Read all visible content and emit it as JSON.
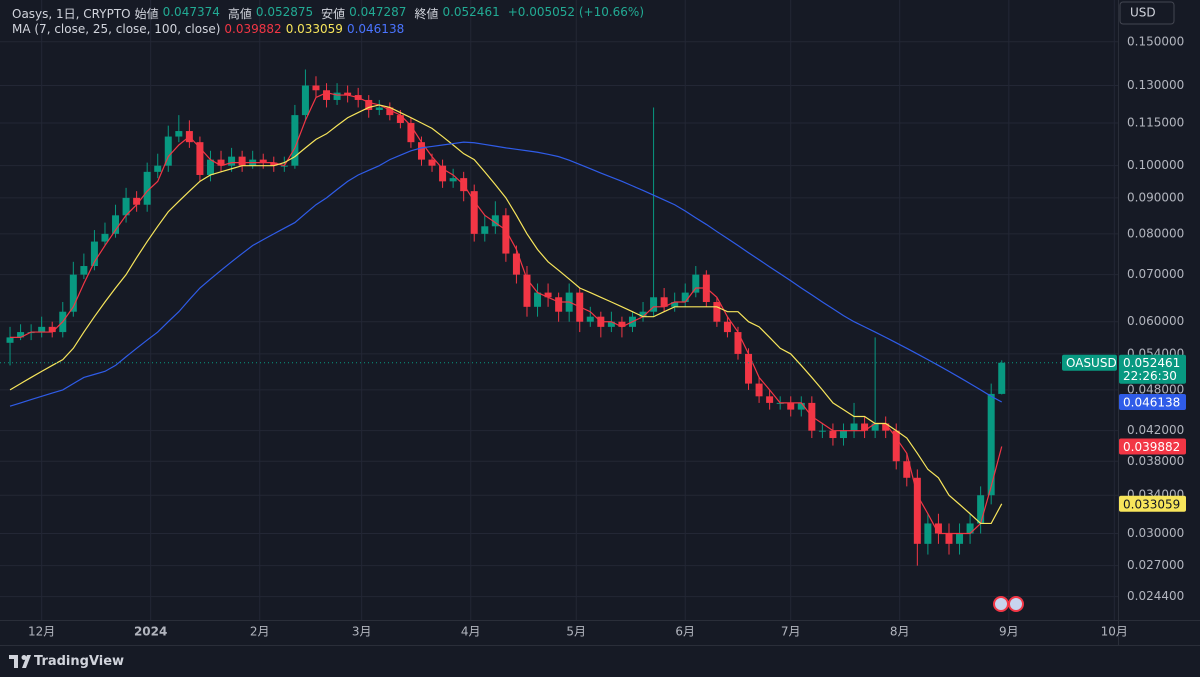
{
  "chart_data": {
    "type": "candlestick",
    "title": "Oasys, 1日, CRYPTO",
    "ohlc_labels": [
      "始値",
      "高値",
      "安値",
      "終値"
    ],
    "change_label": "+0.005052 (+10.66%)",
    "ma_legend": "MA (7, close, 25, close, 100, close)",
    "symbol_label": "OASUSD",
    "countdown": "22:26:30",
    "currency": "USD",
    "brand": "TradingView",
    "up_color": "#089981",
    "down_color": "#f23645",
    "log_scale": true,
    "grid": true,
    "open": [
      0.056,
      0.057,
      0.058,
      0.058,
      0.059,
      0.058,
      0.062,
      0.07,
      0.072,
      0.078,
      0.08,
      0.085,
      0.09,
      0.088,
      0.098,
      0.1,
      0.11,
      0.112,
      0.108,
      0.097,
      0.102,
      0.1,
      0.103,
      0.1,
      0.102,
      0.101,
      0.1,
      0.1,
      0.118,
      0.13,
      0.128,
      0.124,
      0.127,
      0.126,
      0.124,
      0.12,
      0.121,
      0.118,
      0.115,
      0.108,
      0.102,
      0.1,
      0.095,
      0.096,
      0.092,
      0.08,
      0.082,
      0.085,
      0.075,
      0.07,
      0.063,
      0.066,
      0.065,
      0.062,
      0.066,
      0.06,
      0.061,
      0.059,
      0.06,
      0.059,
      0.061,
      0.062,
      0.065,
      0.063,
      0.064,
      0.066,
      0.07,
      0.064,
      0.06,
      0.058,
      0.054,
      0.049,
      0.047,
      0.046,
      0.046,
      0.045,
      0.046,
      0.042,
      0.042,
      0.041,
      0.042,
      0.043,
      0.042,
      0.043,
      0.042,
      0.038,
      0.036,
      0.029,
      0.031,
      0.03,
      0.029,
      0.03,
      0.031,
      0.034,
      0.047374
    ],
    "high": [
      0.059,
      0.0595,
      0.0595,
      0.061,
      0.06,
      0.064,
      0.073,
      0.075,
      0.081,
      0.083,
      0.088,
      0.093,
      0.092,
      0.101,
      0.104,
      0.114,
      0.118,
      0.116,
      0.11,
      0.105,
      0.105,
      0.106,
      0.105,
      0.105,
      0.104,
      0.103,
      0.103,
      0.122,
      0.137,
      0.134,
      0.131,
      0.131,
      0.13,
      0.129,
      0.126,
      0.124,
      0.123,
      0.12,
      0.117,
      0.11,
      0.104,
      0.102,
      0.099,
      0.098,
      0.094,
      0.085,
      0.089,
      0.087,
      0.077,
      0.072,
      0.068,
      0.068,
      0.066,
      0.068,
      0.067,
      0.063,
      0.062,
      0.062,
      0.061,
      0.062,
      0.064,
      0.121,
      0.067,
      0.066,
      0.068,
      0.072,
      0.071,
      0.065,
      0.061,
      0.059,
      0.055,
      0.05,
      0.048,
      0.047,
      0.047,
      0.047,
      0.047,
      0.043,
      0.043,
      0.043,
      0.046,
      0.044,
      0.057,
      0.044,
      0.043,
      0.039,
      0.037,
      0.032,
      0.032,
      0.031,
      0.031,
      0.032,
      0.035,
      0.049,
      0.052875
    ],
    "low": [
      0.052,
      0.0565,
      0.0565,
      0.057,
      0.057,
      0.057,
      0.061,
      0.069,
      0.071,
      0.077,
      0.079,
      0.083,
      0.086,
      0.086,
      0.096,
      0.098,
      0.108,
      0.106,
      0.095,
      0.095,
      0.098,
      0.098,
      0.098,
      0.099,
      0.099,
      0.098,
      0.098,
      0.099,
      0.116,
      0.125,
      0.121,
      0.122,
      0.123,
      0.121,
      0.117,
      0.118,
      0.116,
      0.113,
      0.106,
      0.1,
      0.098,
      0.093,
      0.093,
      0.089,
      0.078,
      0.078,
      0.08,
      0.073,
      0.068,
      0.061,
      0.061,
      0.063,
      0.06,
      0.06,
      0.058,
      0.059,
      0.057,
      0.058,
      0.057,
      0.058,
      0.06,
      0.061,
      0.062,
      0.062,
      0.063,
      0.065,
      0.063,
      0.059,
      0.057,
      0.053,
      0.048,
      0.046,
      0.045,
      0.045,
      0.044,
      0.044,
      0.041,
      0.041,
      0.04,
      0.04,
      0.041,
      0.041,
      0.041,
      0.041,
      0.037,
      0.035,
      0.027,
      0.028,
      0.029,
      0.028,
      0.028,
      0.029,
      0.03,
      0.033,
      0.047287
    ],
    "close": [
      0.057,
      0.058,
      0.058,
      0.059,
      0.058,
      0.062,
      0.07,
      0.072,
      0.078,
      0.08,
      0.085,
      0.09,
      0.088,
      0.098,
      0.1,
      0.11,
      0.112,
      0.108,
      0.097,
      0.102,
      0.1,
      0.103,
      0.1,
      0.102,
      0.101,
      0.1,
      0.1,
      0.118,
      0.13,
      0.128,
      0.124,
      0.127,
      0.126,
      0.124,
      0.12,
      0.121,
      0.118,
      0.115,
      0.108,
      0.102,
      0.1,
      0.095,
      0.096,
      0.092,
      0.08,
      0.082,
      0.085,
      0.075,
      0.07,
      0.063,
      0.066,
      0.065,
      0.062,
      0.066,
      0.06,
      0.061,
      0.059,
      0.06,
      0.059,
      0.061,
      0.062,
      0.065,
      0.063,
      0.064,
      0.066,
      0.07,
      0.064,
      0.06,
      0.058,
      0.054,
      0.049,
      0.047,
      0.046,
      0.046,
      0.045,
      0.046,
      0.042,
      0.042,
      0.041,
      0.042,
      0.043,
      0.042,
      0.043,
      0.042,
      0.038,
      0.036,
      0.029,
      0.031,
      0.03,
      0.029,
      0.03,
      0.031,
      0.034,
      0.047374,
      0.052461
    ],
    "series": [
      {
        "color": "#f23645",
        "values": [
          0.057,
          0.057,
          0.058,
          0.058,
          0.058,
          0.06,
          0.063,
          0.068,
          0.073,
          0.077,
          0.081,
          0.085,
          0.088,
          0.092,
          0.095,
          0.103,
          0.107,
          0.11,
          0.106,
          0.102,
          0.1,
          0.101,
          0.101,
          0.101,
          0.101,
          0.101,
          0.1,
          0.106,
          0.116,
          0.125,
          0.127,
          0.126,
          0.126,
          0.125,
          0.123,
          0.122,
          0.12,
          0.118,
          0.114,
          0.108,
          0.103,
          0.099,
          0.097,
          0.094,
          0.089,
          0.085,
          0.083,
          0.081,
          0.076,
          0.069,
          0.066,
          0.065,
          0.064,
          0.064,
          0.063,
          0.062,
          0.06,
          0.06,
          0.059,
          0.06,
          0.061,
          0.063,
          0.063,
          0.064,
          0.064,
          0.067,
          0.067,
          0.065,
          0.061,
          0.058,
          0.054,
          0.05,
          0.048,
          0.046,
          0.046,
          0.046,
          0.044,
          0.043,
          0.042,
          0.042,
          0.042,
          0.042,
          0.043,
          0.043,
          0.041,
          0.039,
          0.034,
          0.032,
          0.03,
          0.03,
          0.03,
          0.03,
          0.031,
          0.035,
          0.039882
        ]
      },
      {
        "color": "#f7e55b",
        "values": [
          0.048,
          0.049,
          0.05,
          0.051,
          0.052,
          0.053,
          0.055,
          0.058,
          0.061,
          0.064,
          0.067,
          0.07,
          0.074,
          0.078,
          0.082,
          0.086,
          0.089,
          0.092,
          0.095,
          0.097,
          0.098,
          0.099,
          0.1,
          0.1,
          0.1,
          0.1,
          0.101,
          0.103,
          0.106,
          0.109,
          0.111,
          0.114,
          0.117,
          0.119,
          0.121,
          0.122,
          0.121,
          0.119,
          0.117,
          0.115,
          0.113,
          0.11,
          0.107,
          0.104,
          0.102,
          0.098,
          0.094,
          0.09,
          0.085,
          0.08,
          0.076,
          0.073,
          0.071,
          0.069,
          0.067,
          0.066,
          0.065,
          0.064,
          0.063,
          0.062,
          0.061,
          0.061,
          0.062,
          0.063,
          0.063,
          0.063,
          0.063,
          0.063,
          0.062,
          0.062,
          0.06,
          0.059,
          0.057,
          0.055,
          0.054,
          0.052,
          0.05,
          0.048,
          0.046,
          0.045,
          0.044,
          0.044,
          0.043,
          0.043,
          0.042,
          0.041,
          0.039,
          0.037,
          0.036,
          0.034,
          0.033,
          0.032,
          0.031,
          0.031,
          0.033059
        ]
      },
      {
        "color": "#2f5ce8",
        "values": [
          0.0455,
          0.046,
          0.0465,
          0.047,
          0.0475,
          0.048,
          0.049,
          0.05,
          0.0505,
          0.051,
          0.052,
          0.0535,
          0.055,
          0.0565,
          0.058,
          0.06,
          0.062,
          0.0645,
          0.067,
          0.069,
          0.071,
          0.073,
          0.075,
          0.077,
          0.0785,
          0.08,
          0.0815,
          0.083,
          0.0855,
          0.088,
          0.09,
          0.0925,
          0.095,
          0.097,
          0.0985,
          0.1,
          0.102,
          0.1035,
          0.105,
          0.106,
          0.1065,
          0.107,
          0.1075,
          0.108,
          0.1078,
          0.1072,
          0.1066,
          0.106,
          0.1055,
          0.105,
          0.1045,
          0.1038,
          0.103,
          0.1018,
          0.1004,
          0.099,
          0.0976,
          0.0963,
          0.095,
          0.0936,
          0.0922,
          0.0908,
          0.0894,
          0.088,
          0.0862,
          0.0843,
          0.0825,
          0.0806,
          0.0788,
          0.077,
          0.0752,
          0.0735,
          0.0718,
          0.0702,
          0.0686,
          0.067,
          0.0655,
          0.064,
          0.0626,
          0.0612,
          0.06,
          0.059,
          0.058,
          0.057,
          0.056,
          0.055,
          0.054,
          0.053,
          0.052,
          0.051,
          0.05,
          0.049,
          0.048,
          0.047,
          0.046138
        ]
      }
    ],
    "xlim": [
      -0.95,
      105.02
    ],
    "xticks": [
      {
        "value": 3.0,
        "label": "12月"
      },
      {
        "value": 13.33,
        "label": "2024"
      },
      {
        "value": 23.67,
        "label": "2月"
      },
      {
        "value": 33.33,
        "label": "3月"
      },
      {
        "value": 43.67,
        "label": "4月"
      },
      {
        "value": 53.67,
        "label": "5月"
      },
      {
        "value": 64,
        "label": "6月"
      },
      {
        "value": 74,
        "label": "7月"
      },
      {
        "value": 84.33,
        "label": "8月"
      },
      {
        "value": 94.67,
        "label": "9月"
      },
      {
        "value": 104.67,
        "label": "10月"
      }
    ],
    "ylim": [
      0.0226,
      0.172
    ],
    "yticks": [
      {
        "value": 0.15,
        "label": "0.150000"
      },
      {
        "value": 0.13,
        "label": "0.130000"
      },
      {
        "value": 0.115,
        "label": "0.115000"
      },
      {
        "value": 0.1,
        "label": "0.100000"
      },
      {
        "value": 0.09,
        "label": "0.090000"
      },
      {
        "value": 0.08,
        "label": "0.080000"
      },
      {
        "value": 0.07,
        "label": "0.070000"
      },
      {
        "value": 0.06,
        "label": "0.060000"
      },
      {
        "value": 0.054,
        "label": "0.054000"
      },
      {
        "value": 0.048,
        "label": "0.048000"
      },
      {
        "value": 0.042,
        "label": "0.042000"
      },
      {
        "value": 0.038,
        "label": "0.038000"
      },
      {
        "value": 0.034,
        "label": "0.034000"
      },
      {
        "value": 0.03,
        "label": "0.030000"
      },
      {
        "value": 0.027,
        "label": "0.027000"
      },
      {
        "value": 0.0244,
        "label": "0.024400"
      }
    ]
  }
}
